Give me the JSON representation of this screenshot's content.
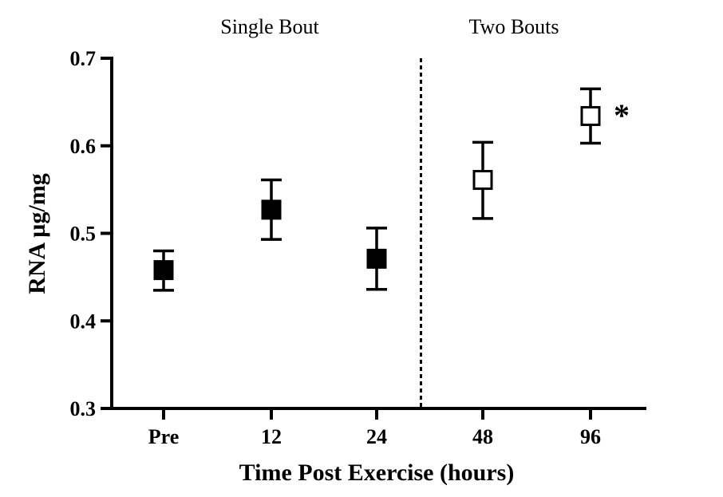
{
  "chart_data": {
    "type": "scatter",
    "title": "",
    "xlabel": "Time Post Exercise (hours)",
    "ylabel": "RNA µg/mg",
    "ylim": [
      0.3,
      0.7
    ],
    "yticks": [
      "0.3",
      "0.4",
      "0.5",
      "0.6",
      "0.7"
    ],
    "categories": [
      "Pre",
      "12",
      "24",
      "48",
      "96"
    ],
    "series": [
      {
        "name": "Single Bout",
        "marker": "filled-square",
        "color": "#000000",
        "points": [
          {
            "x": "Pre",
            "y": 0.458,
            "err_low": 0.435,
            "err_high": 0.48
          },
          {
            "x": "12",
            "y": 0.527,
            "err_low": 0.493,
            "err_high": 0.561
          },
          {
            "x": "24",
            "y": 0.471,
            "err_low": 0.436,
            "err_high": 0.506
          }
        ]
      },
      {
        "name": "Two Bouts",
        "marker": "open-square",
        "color": "#000000",
        "points": [
          {
            "x": "48",
            "y": 0.561,
            "err_low": 0.517,
            "err_high": 0.604
          },
          {
            "x": "96",
            "y": 0.634,
            "err_low": 0.603,
            "err_high": 0.665
          }
        ]
      }
    ],
    "group_labels": [
      "Single Bout",
      "Two Bouts"
    ],
    "divider": {
      "style": "dashed",
      "between": [
        "24",
        "48"
      ]
    },
    "annotations": [
      {
        "text": "*",
        "x": "96"
      }
    ],
    "grid": false
  }
}
